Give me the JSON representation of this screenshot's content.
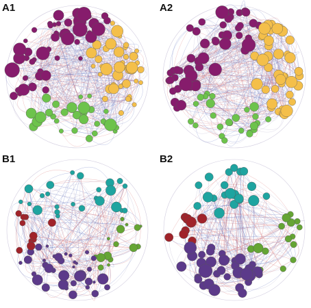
{
  "figure": {
    "colors": {
      "purple_magenta": "#861c6c",
      "yellow": "#f4bf4a",
      "green": "#6dc34c",
      "teal": "#1ea4a0",
      "dark_red": "#a0232a",
      "dark_purple": "#5c3a8a",
      "olive_green": "#65a534",
      "edge_blue": "#5b6fbf",
      "edge_red": "#d86a6a",
      "edge_gray": "#b0a8c8",
      "node_stroke": "#555555"
    },
    "panels": [
      {
        "id": "A1",
        "label": "A1",
        "node_groups": [
          {
            "color_key": "purple_magenta",
            "count": 55
          },
          {
            "color_key": "yellow",
            "count": 45
          },
          {
            "color_key": "green",
            "count": 30
          }
        ],
        "edge_density": "dense"
      },
      {
        "id": "A2",
        "label": "A2",
        "node_groups": [
          {
            "color_key": "purple_magenta",
            "count": 50
          },
          {
            "color_key": "yellow",
            "count": 40
          },
          {
            "color_key": "green",
            "count": 25
          }
        ],
        "edge_density": "dense"
      },
      {
        "id": "B1",
        "label": "B1",
        "node_groups": [
          {
            "color_key": "teal",
            "count": 25
          },
          {
            "color_key": "dark_red",
            "count": 10
          },
          {
            "color_key": "dark_purple",
            "count": 40
          },
          {
            "color_key": "olive_green",
            "count": 15
          }
        ],
        "edge_density": "sparse"
      },
      {
        "id": "B2",
        "label": "B2",
        "node_groups": [
          {
            "color_key": "teal",
            "count": 20
          },
          {
            "color_key": "dark_red",
            "count": 8
          },
          {
            "color_key": "dark_purple",
            "count": 35
          },
          {
            "color_key": "olive_green",
            "count": 15
          }
        ],
        "edge_density": "sparse"
      }
    ]
  }
}
